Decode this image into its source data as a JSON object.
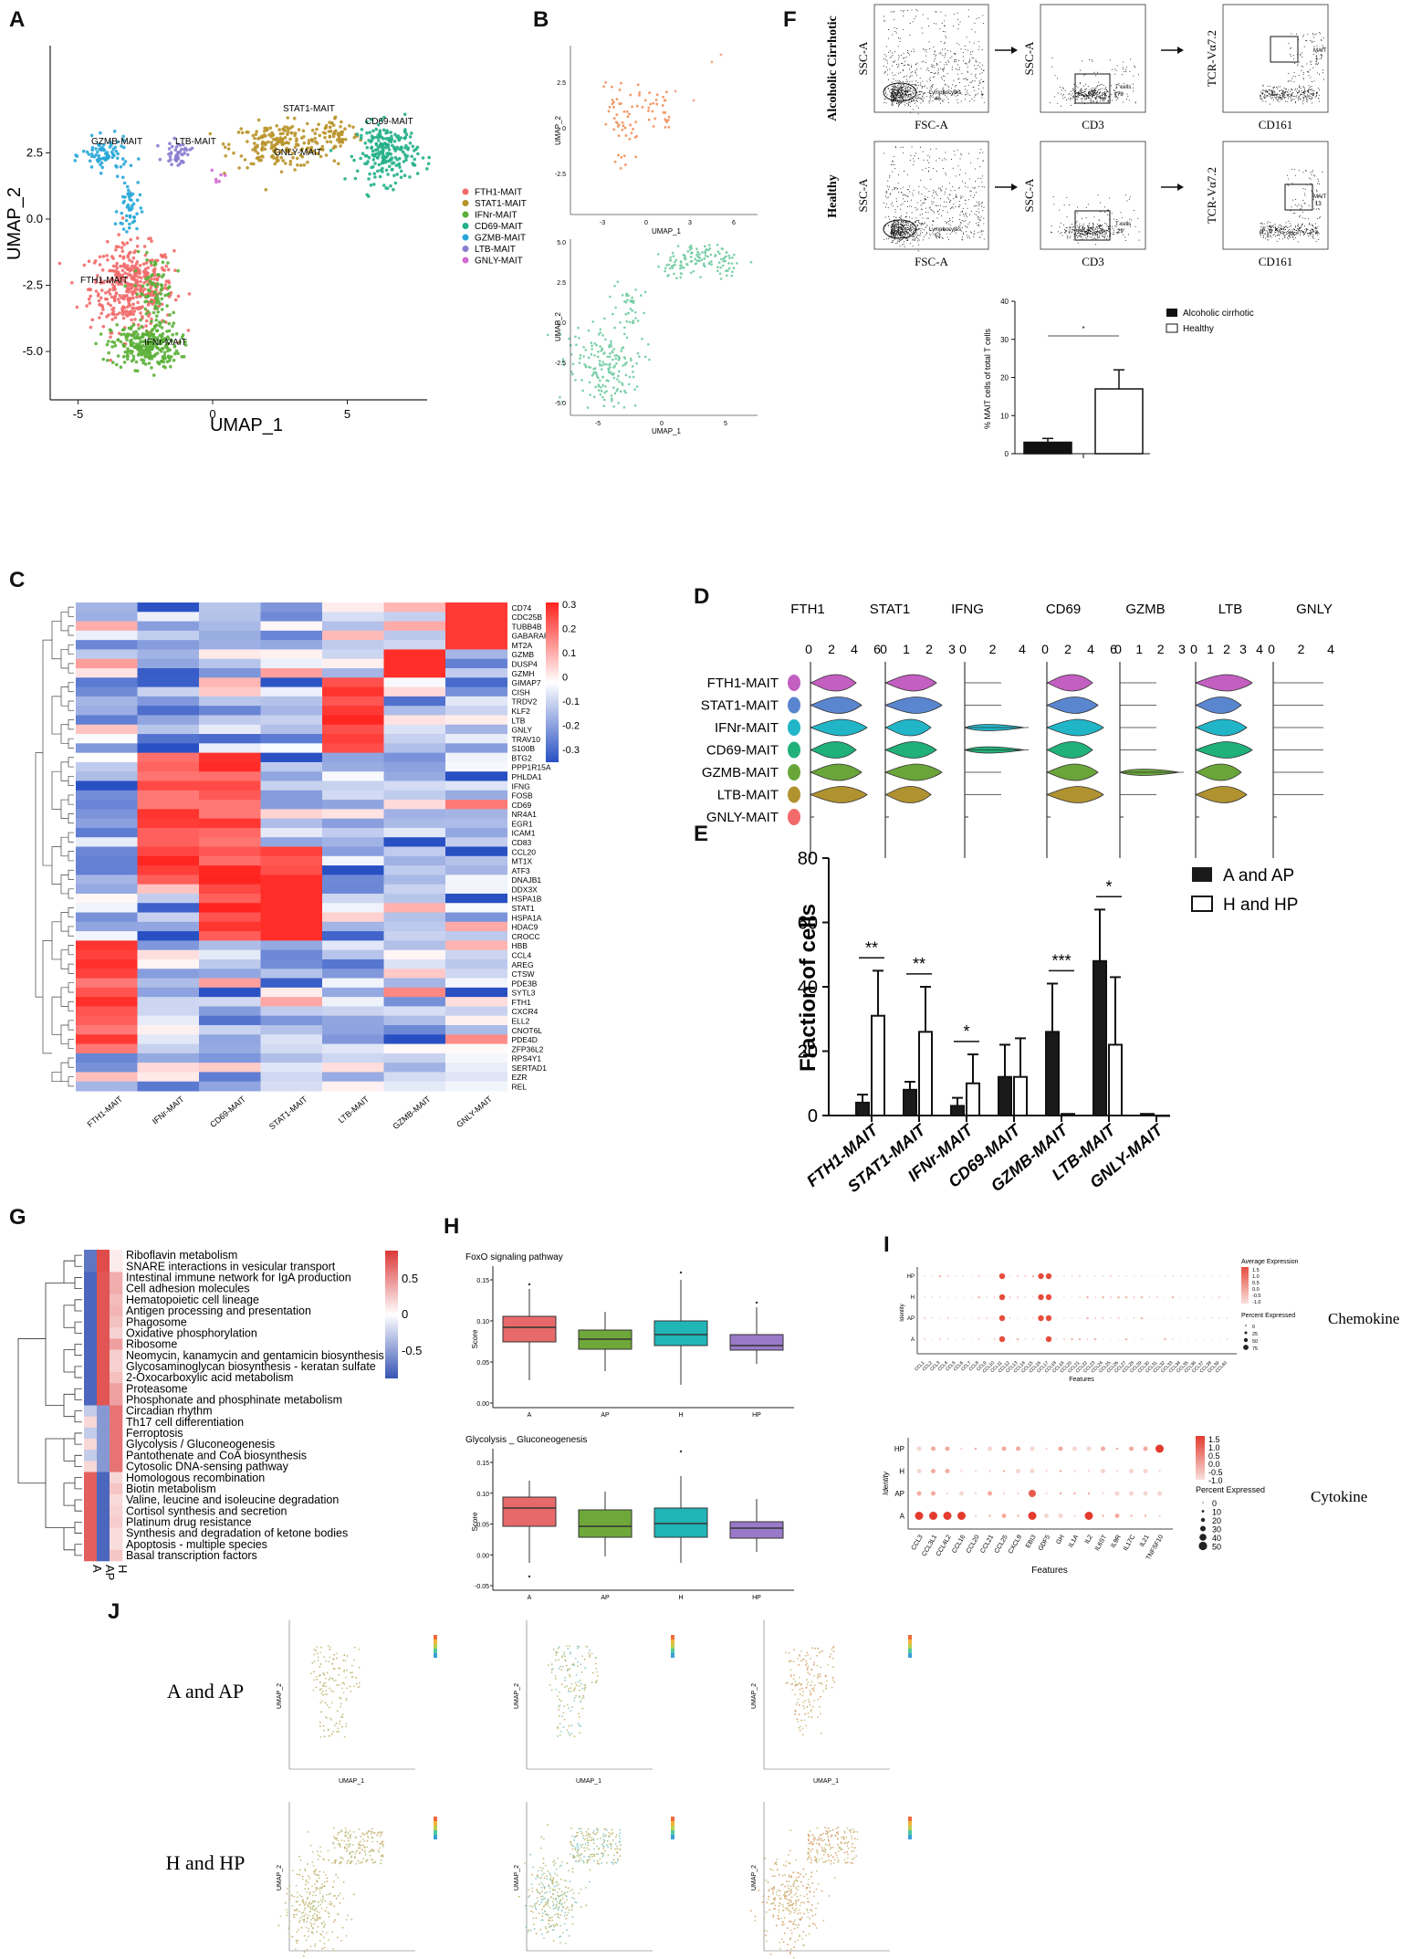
{
  "labels": {
    "A": "A",
    "B": "B",
    "C": "C",
    "D": "D",
    "E": "E",
    "F": "F",
    "G": "G",
    "H": "H",
    "I": "I",
    "J": "J"
  },
  "panelA": {
    "xlabel": "UMAP_1",
    "ylabel": "UMAP_2",
    "xticks": [
      "-5",
      "0",
      "5"
    ],
    "yticks": [
      "2.5",
      "0.0",
      "-2.5",
      "-5.0"
    ],
    "clusters": [
      {
        "name": "FTH1-MAIT",
        "color": "#f26b6b"
      },
      {
        "name": "STAT1-MAIT",
        "color": "#b8932a"
      },
      {
        "name": "IFNr-MAIT",
        "color": "#5bb038"
      },
      {
        "name": "CD69-MAIT",
        "color": "#23b08a"
      },
      {
        "name": "GZMB-MAIT",
        "color": "#27a7d8"
      },
      {
        "name": "LTB-MAIT",
        "color": "#8a7cd0"
      },
      {
        "name": "GNLY-MAIT",
        "color": "#d36cd0"
      }
    ],
    "cluster_labels": [
      "GZMB-MAIT",
      "LTB-MAIT",
      "STAT1-MAIT",
      "CD69-MAIT",
      "GNLY-MAIT",
      "FTH1-MAIT",
      "IFNr-MAIT"
    ]
  },
  "panelB": {
    "xlabel": "UMAP_1",
    "ylabel": "UMAP_2",
    "top_xticks": [
      "-3",
      "0",
      "3",
      "6"
    ],
    "top_yticks": [
      "2.5",
      "0",
      "-2.5"
    ],
    "bottom_xticks": [
      "-5",
      "0",
      "5"
    ],
    "bottom_yticks": [
      "5.0",
      "2.5",
      "0.0",
      "-2.5",
      "-5.0"
    ]
  },
  "panelC": {
    "columns": [
      "FTH1-MAIT",
      "IFNr-MAIT",
      "CD69-MAIT",
      "STAT1-MAIT",
      "LTB-MAIT",
      "GZMB-MAIT",
      "GNLY-MAIT"
    ],
    "genes": [
      "CD74",
      "CDC25B",
      "TUBB4B",
      "GABARAPL1",
      "MT2A",
      "GZMB",
      "DUSP4",
      "GZMH",
      "GIMAP7",
      "CISH",
      "TRDV2",
      "KLF2",
      "LTB",
      "GNLY",
      "TRAV10",
      "S100B",
      "BTG2",
      "PPP1R15A",
      "PHLDA1",
      "IFNG",
      "FOSB",
      "CD69",
      "NR4A1",
      "EGR1",
      "ICAM1",
      "CD83",
      "CCL20",
      "MT1X",
      "ATF3",
      "DNAJB1",
      "DDX3X",
      "HSPA1B",
      "STAT1",
      "HSPA1A",
      "HDAC9",
      "CROCC",
      "HBB",
      "CCL4",
      "AREG",
      "CTSW",
      "PDE3B",
      "SYTL3",
      "FTH1",
      "CXCR4",
      "ELL2",
      "CNOT6L",
      "PDE4D",
      "ZFP36L2",
      "RPS4Y1",
      "SERTAD1",
      "EZR",
      "REL"
    ],
    "colorbar_ticks": [
      "0.3",
      "0.2",
      "0.1",
      "0",
      "-0.1",
      "-0.2",
      "-0.3"
    ]
  },
  "panelD": {
    "genes": [
      "FTH1",
      "STAT1",
      "IFNG",
      "CD69",
      "GZMB",
      "LTB",
      "GNLY"
    ],
    "tick_sets": [
      [
        "0",
        "2",
        "4",
        "6"
      ],
      [
        "0",
        "1",
        "2",
        "3"
      ],
      [
        "0",
        "2",
        "4"
      ],
      [
        "0",
        "2",
        "4",
        "6"
      ],
      [
        "0",
        "1",
        "2",
        "3"
      ],
      [
        "0",
        "1",
        "2",
        "3",
        "4"
      ],
      [
        "0",
        "2",
        "4"
      ]
    ],
    "rows": [
      "FTH1-MAIT",
      "STAT1-MAIT",
      "IFNr-MAIT",
      "CD69-MAIT",
      "GZMB-MAIT",
      "LTB-MAIT",
      "GNLY-MAIT"
    ]
  },
  "panelE": {
    "ylabel": "Fraction of cells",
    "yticks": [
      "80",
      "60",
      "40",
      "20",
      "0"
    ],
    "legend": [
      "A and AP",
      "H and HP"
    ],
    "chart_data": {
      "type": "bar",
      "title": "",
      "ylabel": "Fraction of cells",
      "ylim": [
        0,
        80
      ],
      "categories": [
        "FTH1-MAIT",
        "STAT1-MAIT",
        "IFNr-MAIT",
        "CD69-MAIT",
        "GZMB-MAIT",
        "LTB-MAIT",
        "GNLY-MAIT"
      ],
      "series": [
        {
          "name": "A and AP",
          "values": [
            4,
            8,
            3,
            12,
            26,
            48,
            0.5
          ],
          "errors": [
            2.5,
            2.5,
            2.5,
            10,
            15,
            16,
            0.3
          ]
        },
        {
          "name": "H and HP",
          "values": [
            31,
            26,
            10,
            12,
            0.5,
            22,
            0
          ],
          "errors": [
            14,
            14,
            9,
            12,
            0.3,
            21,
            0
          ]
        }
      ],
      "significance": [
        "**",
        "**",
        "*",
        "",
        "***",
        "*",
        ""
      ]
    }
  },
  "panelF": {
    "row1_label": "Alcoholic Cirrhotic",
    "row2_label": "Healthy",
    "xlabels": [
      "FSC-A",
      "CD3",
      "CD161"
    ],
    "ylabels": [
      "SSC-A",
      "SSC-A",
      "TCR-Vα7.2"
    ],
    "gates_row1": [
      {
        "name": "Lymphocytes",
        "val": "46"
      },
      {
        "name": "T cells",
        "val": "78"
      },
      {
        "name": "MAIT",
        "val": "1.7"
      }
    ],
    "gates_row2": [
      {
        "name": "Lymphocytes",
        "val": "52"
      },
      {
        "name": "T cells",
        "val": "29"
      },
      {
        "name": "MAIT",
        "val": "13"
      }
    ],
    "bar": {
      "ylabel": "% MAIT cells of total T cells",
      "yticks": [
        "40",
        "30",
        "20",
        "10",
        "0"
      ],
      "legend": [
        "Alcoholic cirrhotic",
        "Healthy"
      ],
      "sig": "*",
      "chart_data": {
        "type": "bar",
        "categories": [
          "Alcoholic cirrhotic",
          "Healthy"
        ],
        "values": [
          3,
          17
        ],
        "errors": [
          1,
          5
        ],
        "ylim": [
          0,
          40
        ]
      }
    }
  },
  "panelG": {
    "pathways": [
      "Riboflavin metabolism",
      "SNARE interactions in vesicular transport",
      "Intestinal immune network for IgA production",
      "Cell adhesion molecules",
      "Hematopoietic cell lineage",
      "Antigen processing and presentation",
      "Phagosome",
      "Oxidative phosphorylation",
      "Ribosome",
      "Neomycin, kanamycin and gentamicin biosynthesis",
      "Glycosaminoglycan biosynthesis - keratan sulfate",
      "2-Oxocarboxylic acid metabolism",
      "Proteasome",
      "Phosphonate and phosphinate metabolism",
      "Circadian rhythm",
      "Th17 cell differentiation",
      "Ferroptosis",
      "Glycolysis / Gluconeogenesis",
      "Pantothenate and CoA biosynthesis",
      "Cytosolic DNA-sensing pathway",
      "Homologous recombination",
      "Biotin metabolism",
      "Valine, leucine and isoleucine degradation",
      "Cortisol synthesis and secretion",
      "Platinum drug resistance",
      "Synthesis and degradation of ketone bodies",
      "Apoptosis - multiple species",
      "Basal transcription factors"
    ],
    "columns": [
      "A",
      "AP",
      "H"
    ],
    "colorbar_ticks": [
      "0.5",
      "0",
      "-0.5"
    ]
  },
  "panelH": {
    "top_title": "FoxO signaling pathway",
    "bottom_title": "Glycolysis _ Gluconeogenesis",
    "ylabel": "Score",
    "groups": [
      "A",
      "AP",
      "H",
      "HP"
    ],
    "colors": [
      "#e8696a",
      "#6fa83a",
      "#22b5b8",
      "#9a7ac8"
    ],
    "top_yticks": [
      "0.15",
      "0.10",
      "0.05",
      "0.00"
    ],
    "bottom_yticks": [
      "0.15",
      "0.10",
      "0.05",
      "0.00",
      "-0.05"
    ]
  },
  "panelI": {
    "top_label": "Chemokine",
    "bottom_label": "Cytokine",
    "ylabel": "Identity",
    "xlabel": "Features",
    "rows": [
      "HP",
      "H",
      "AP",
      "A"
    ],
    "top_legend_title": "Average Expression",
    "top_legend_vals": [
      "1.5",
      "1.0",
      "0.5",
      "0.0",
      "-0.5",
      "-1.0"
    ],
    "top_pct_title": "Percent Expressed",
    "top_pct_vals": [
      "0",
      "25",
      "50",
      "75"
    ],
    "bottom_legend_vals": [
      "1.5",
      "1.0",
      "0.5",
      "0.0",
      "-0.5",
      "-1.0"
    ],
    "bottom_pct_title": "Percent Expressed",
    "bottom_pct_vals": [
      "0",
      "10",
      "20",
      "30",
      "40",
      "50"
    ],
    "bottom_features": [
      "CCL3",
      "CCL3L1",
      "CCL4L2",
      "CCL16",
      "CCL20",
      "CCL21",
      "CCL25",
      "CXCL9",
      "EBI3",
      "GDF5",
      "GH",
      "IL1A",
      "IL2",
      "IL6ST",
      "IL9R",
      "IL17C",
      "IL21",
      "TNFSF10"
    ]
  },
  "panelJ": {
    "row1": "A and AP",
    "row2": "H and HP",
    "xlabel": "UMAP_1",
    "ylabel": "UMAP_2"
  }
}
